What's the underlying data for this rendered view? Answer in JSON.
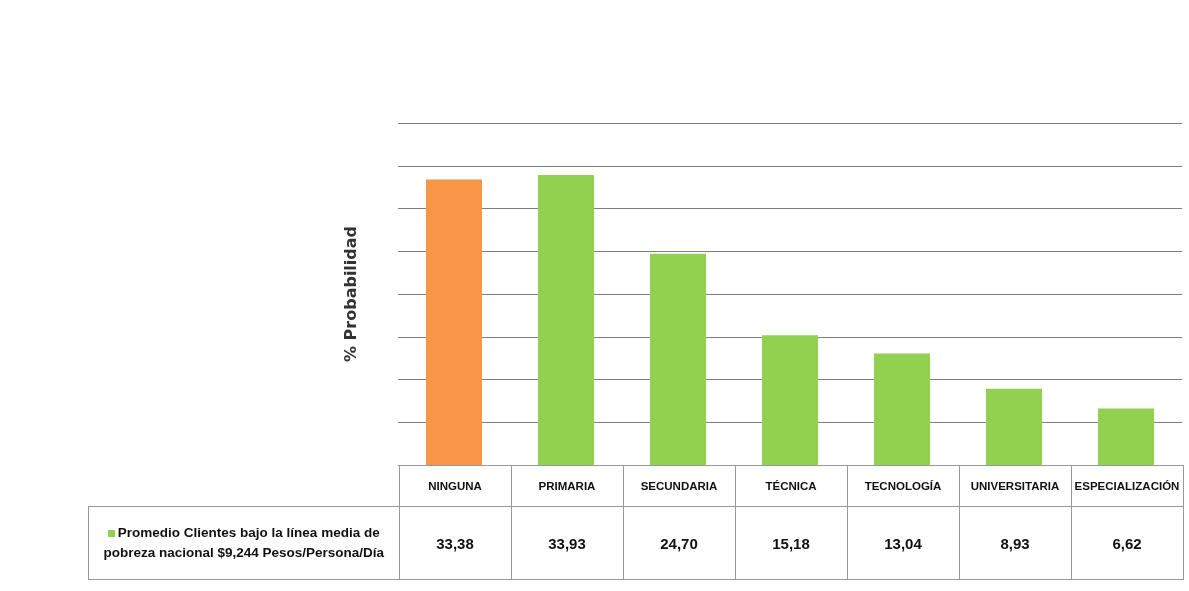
{
  "chart_data": {
    "type": "bar",
    "ylabel": "% Probabilidad",
    "categories": [
      "NINGUNA",
      "PRIMARIA",
      "SECUNDARIA",
      "TÉCNICA",
      "TECNOLOGÍA",
      "UNIVERSITARIA",
      "ESPECIALIZACIÓN"
    ],
    "series": [
      {
        "name": "Promedio Clientes bajo la línea media de pobreza nacional $9,244 Pesos/Persona/Día",
        "color": "#92d050",
        "colors": [
          "#f79646",
          "#92d050",
          "#92d050",
          "#92d050",
          "#92d050",
          "#92d050",
          "#92d050"
        ],
        "values": [
          33.38,
          33.93,
          24.7,
          15.18,
          13.04,
          8.93,
          6.62
        ],
        "value_labels": [
          "33,38",
          "33,93",
          "24,70",
          "15,18",
          "13,04",
          "8,93",
          "6,62"
        ]
      }
    ],
    "ylim": [
      0,
      40
    ],
    "yticks": [
      {
        "value": 0,
        "label": null
      },
      {
        "value": 5,
        "label": null
      },
      {
        "value": 10,
        "label": null
      },
      {
        "value": 15,
        "label": null
      },
      {
        "value": 20,
        "label": null
      },
      {
        "value": 25,
        "label": null
      },
      {
        "value": 30,
        "label": null
      },
      {
        "value": 35,
        "label": null
      },
      {
        "value": 40,
        "label": null
      }
    ],
    "grid": "y",
    "legend": "bottom left"
  }
}
